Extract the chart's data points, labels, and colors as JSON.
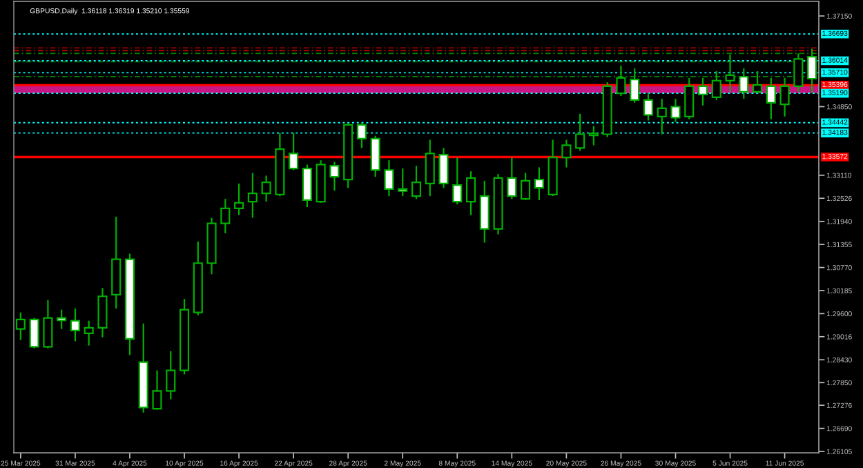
{
  "chart_data": {
    "type": "candlestick",
    "title": "GBPUSD,Daily  1.36118 1.36319 1.35210 1.35559",
    "categories": [
      "25 Mar 2025",
      null,
      null,
      null,
      "31 Mar 2025",
      null,
      null,
      null,
      "4 Apr 2025",
      null,
      null,
      null,
      "10 Apr 2025",
      null,
      null,
      null,
      "16 Apr 2025",
      null,
      null,
      null,
      "22 Apr 2025",
      null,
      null,
      null,
      "28 Apr 2025",
      null,
      null,
      null,
      "2 May 2025",
      null,
      null,
      null,
      "8 May 2025",
      null,
      null,
      null,
      "14 May 2025",
      null,
      null,
      null,
      "20 May 2025",
      null,
      null,
      null,
      "26 May 2025",
      null,
      null,
      null,
      "30 May 2025",
      null,
      null,
      null,
      "5 Jun 2025",
      null,
      null,
      null,
      "11 Jun 2025",
      null,
      null
    ],
    "ohlc": [
      [
        1.2921,
        1.2963,
        1.2893,
        1.2945
      ],
      [
        1.2945,
        1.2949,
        1.2872,
        1.2876
      ],
      [
        1.2876,
        1.2994,
        1.2872,
        1.2949
      ],
      [
        1.2949,
        1.297,
        1.2921,
        1.2943
      ],
      [
        1.2942,
        1.2973,
        1.289,
        1.2917
      ],
      [
        1.291,
        1.2942,
        1.2879,
        1.2924
      ],
      [
        1.2924,
        1.3025,
        1.29,
        1.3004
      ],
      [
        1.3008,
        1.3206,
        1.2973,
        1.3098
      ],
      [
        1.3098,
        1.3112,
        1.2855,
        1.2896
      ],
      [
        1.2837,
        1.2935,
        1.2709,
        1.2722
      ],
      [
        1.2719,
        1.2816,
        1.2716,
        1.2764
      ],
      [
        1.2764,
        1.2865,
        1.2743,
        1.2816
      ],
      [
        1.2816,
        1.2997,
        1.2806,
        1.297
      ],
      [
        1.2963,
        1.3143,
        1.2956,
        1.3088
      ],
      [
        1.3088,
        1.3203,
        1.306,
        1.3189
      ],
      [
        1.3189,
        1.3251,
        1.3164,
        1.3227
      ],
      [
        1.3227,
        1.329,
        1.321,
        1.3241
      ],
      [
        1.3244,
        1.3317,
        1.3203,
        1.3265
      ],
      [
        1.3265,
        1.331,
        1.3244,
        1.3293
      ],
      [
        1.3262,
        1.3418,
        1.3258,
        1.3377
      ],
      [
        1.3366,
        1.3418,
        1.3324,
        1.3328
      ],
      [
        1.3328,
        1.3338,
        1.323,
        1.3248
      ],
      [
        1.3244,
        1.3349,
        1.3241,
        1.3338
      ],
      [
        1.3335,
        1.3345,
        1.3272,
        1.3307
      ],
      [
        1.33,
        1.3443,
        1.3279,
        1.3439
      ],
      [
        1.3439,
        1.3443,
        1.338,
        1.3404
      ],
      [
        1.3404,
        1.3411,
        1.3307,
        1.3324
      ],
      [
        1.3324,
        1.3349,
        1.3258,
        1.3276
      ],
      [
        1.3276,
        1.3328,
        1.3258,
        1.3271
      ],
      [
        1.3258,
        1.3335,
        1.3251,
        1.3293
      ],
      [
        1.329,
        1.3401,
        1.3258,
        1.3366
      ],
      [
        1.3363,
        1.338,
        1.3279,
        1.329
      ],
      [
        1.3286,
        1.3356,
        1.3237,
        1.3244
      ],
      [
        1.3244,
        1.3321,
        1.321,
        1.3304
      ],
      [
        1.3258,
        1.3297,
        1.314,
        1.3175
      ],
      [
        1.3175,
        1.3314,
        1.3161,
        1.3304
      ],
      [
        1.3304,
        1.3356,
        1.3251,
        1.3258
      ],
      [
        1.3251,
        1.3317,
        1.3248,
        1.3297
      ],
      [
        1.33,
        1.3331,
        1.3248,
        1.3279
      ],
      [
        1.3262,
        1.3401,
        1.3258,
        1.3356
      ],
      [
        1.3356,
        1.3401,
        1.3331,
        1.3387
      ],
      [
        1.338,
        1.3467,
        1.3373,
        1.3415
      ],
      [
        1.3412,
        1.3436,
        1.3387,
        1.3417
      ],
      [
        1.3415,
        1.3547,
        1.3408,
        1.3537
      ],
      [
        1.3519,
        1.3589,
        1.3512,
        1.3558
      ],
      [
        1.3554,
        1.3582,
        1.3495,
        1.3502
      ],
      [
        1.3502,
        1.3519,
        1.345,
        1.3464
      ],
      [
        1.346,
        1.3505,
        1.3415,
        1.3481
      ],
      [
        1.3485,
        1.3505,
        1.3446,
        1.3457
      ],
      [
        1.346,
        1.3558,
        1.3453,
        1.3537
      ],
      [
        1.3537,
        1.3558,
        1.3488,
        1.3516
      ],
      [
        1.3509,
        1.3575,
        1.3502,
        1.3551
      ],
      [
        1.3551,
        1.3617,
        1.3523,
        1.3565
      ],
      [
        1.3561,
        1.3582,
        1.3505,
        1.3523
      ],
      [
        1.3523,
        1.3575,
        1.3519,
        1.354
      ],
      [
        1.3537,
        1.3558,
        1.3453,
        1.3495
      ],
      [
        1.3491,
        1.3558,
        1.346,
        1.3537
      ],
      [
        1.3537,
        1.362,
        1.3523,
        1.3606
      ],
      [
        1.36118,
        1.36319,
        1.3521,
        1.35559
      ]
    ],
    "color": "#00b000",
    "colors": [
      "#000000",
      "#ffffff",
      "#000000",
      "#ffffff",
      "#ffffff",
      "#000000",
      "#000000",
      "#000000",
      "#ffffff",
      "#ffffff",
      "#000000",
      "#000000",
      "#000000",
      "#000000",
      "#000000",
      "#000000",
      "#000000",
      "#000000",
      "#000000",
      "#000000",
      "#ffffff",
      "#ffffff",
      "#000000",
      "#ffffff",
      "#000000",
      "#ffffff",
      "#ffffff",
      "#ffffff",
      "#ffffff",
      "#000000",
      "#000000",
      "#ffffff",
      "#ffffff",
      "#000000",
      "#ffffff",
      "#000000",
      "#ffffff",
      "#000000",
      "#ffffff",
      "#000000",
      "#000000",
      "#000000",
      "#000000",
      "#000000",
      "#000000",
      "#ffffff",
      "#ffffff",
      "#000000",
      "#ffffff",
      "#000000",
      "#ffffff",
      "#000000",
      "#000000",
      "#ffffff",
      "#000000",
      "#ffffff",
      "#000000",
      "#000000",
      "#ffffff"
    ],
    "ylim": [
      1.2607,
      1.3752
    ],
    "yticks": [
      {
        "value": 1.3715,
        "label": "1.37150"
      },
      {
        "value": 1.3485,
        "label": "1.34850"
      },
      {
        "value": 1.3311,
        "label": "1.33110"
      },
      1.32526,
      {
        "value": 1.3194,
        "label": "1.31940"
      },
      1.31355,
      {
        "value": 1.3077,
        "label": "1.30770"
      },
      1.30185,
      {
        "value": 1.296,
        "label": "1.29600"
      },
      1.29016,
      {
        "value": 1.2843,
        "label": "1.28430"
      },
      {
        "value": 1.2785,
        "label": "1.27850"
      },
      1.27276,
      {
        "value": 1.2669,
        "label": "1.26690"
      },
      1.26105
    ],
    "ref_lines": [
      {
        "axis": "y",
        "value": 1.36693,
        "label": "1.36693",
        "color": "#00ffff",
        "line_style": "dotted"
      },
      {
        "axis": "y",
        "value": 1.3634,
        "color": "#a00000",
        "line_style": "dashed"
      },
      {
        "axis": "y",
        "value": 1.3627,
        "color": "#c00000",
        "line_style": "dashed"
      },
      {
        "axis": "y",
        "value": 1.362,
        "color": "#008000",
        "line_style": "dashed"
      },
      {
        "axis": "y",
        "value": 1.3599,
        "color": "#008000",
        "line_style": "dashed"
      },
      {
        "axis": "y",
        "value": 1.36014,
        "label": "1.36014",
        "color": "#00ffff",
        "line_style": "dotted"
      },
      {
        "axis": "y",
        "value": 1.3571,
        "label": "1.35710",
        "color": "#00ffff",
        "line_style": "dotted"
      },
      {
        "axis": "y",
        "value": 1.3561,
        "color": "#008000",
        "line_style": "dashed"
      },
      {
        "axis": "y",
        "value": 1.35396,
        "label": "1.35396",
        "color": "#ff0000",
        "line_style": "solid"
      },
      {
        "axis": "y",
        "value": 1.3519,
        "label": "1.35190",
        "color": "#00ffff",
        "line_style": "dotted"
      },
      {
        "axis": "y",
        "value": 1.34442,
        "label": "1.34442",
        "color": "#00ffff",
        "line_style": "dotted"
      },
      {
        "axis": "y",
        "value": 1.34183,
        "label": "1.34183",
        "color": "#00ffff",
        "line_style": "dotted"
      },
      {
        "axis": "y",
        "value": 1.33572,
        "label": "1.33572",
        "color": "#ff0000",
        "line_style": "solid"
      }
    ],
    "bands": [
      {
        "axis": "y",
        "from": 1.3519,
        "to": 1.354,
        "color": "#c71585"
      }
    ],
    "grid": false
  }
}
